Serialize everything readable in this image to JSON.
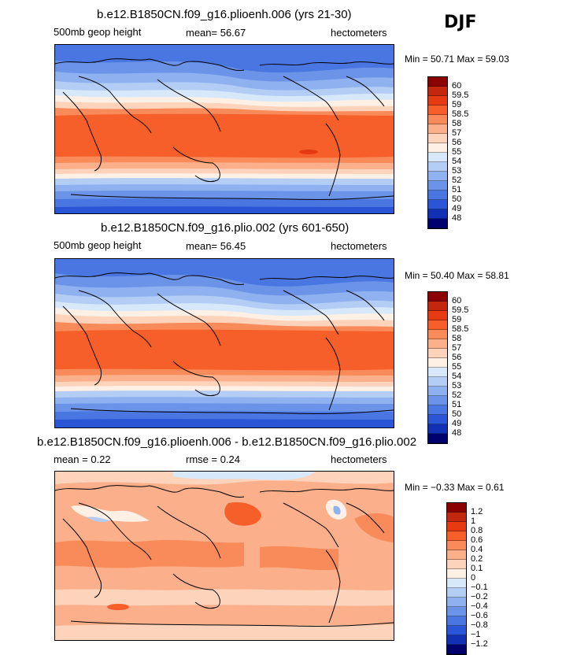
{
  "season": "DJF",
  "panels": [
    {
      "title": "b.e12.B1850CN.f09_g16.plioenh.006 (yrs 21-30)",
      "left_label": "500mb geop height",
      "center_label": "mean=   56.67",
      "right_label": "hectometers",
      "stats": "Min =   50.71  Max =   59.03",
      "levels": [
        "60",
        "59.5",
        "59",
        "58.5",
        "58",
        "57",
        "56",
        "55",
        "54",
        "53",
        "52",
        "51",
        "50",
        "49",
        "48"
      ],
      "colors": [
        "#8b0000",
        "#c3280e",
        "#e53a12",
        "#f65e2a",
        "#f98a5a",
        "#fbaf8a",
        "#fdd3bb",
        "#fff0e6",
        "#d7e8fb",
        "#b3cdf5",
        "#8fb1ef",
        "#6b94e9",
        "#4a76e2",
        "#2a55d6",
        "#1230b4",
        "#00006e"
      ]
    },
    {
      "title": "b.e12.B1850CN.f09_g16.plio.002 (yrs 601-650)",
      "left_label": "500mb  geop height",
      "center_label": "mean=   56.45",
      "right_label": "hectometers",
      "stats": "Min =   50.40  Max =   58.81",
      "levels": [
        "60",
        "59.5",
        "59",
        "58.5",
        "58",
        "57",
        "56",
        "55",
        "54",
        "53",
        "52",
        "51",
        "50",
        "49",
        "48"
      ],
      "colors": [
        "#8b0000",
        "#c3280e",
        "#e53a12",
        "#f65e2a",
        "#f98a5a",
        "#fbaf8a",
        "#fdd3bb",
        "#fff0e6",
        "#d7e8fb",
        "#b3cdf5",
        "#8fb1ef",
        "#6b94e9",
        "#4a76e2",
        "#2a55d6",
        "#1230b4",
        "#00006e"
      ]
    },
    {
      "title": "b.e12.B1850CN.f09_g16.plioenh.006 - b.e12.B1850CN.f09_g16.plio.002",
      "left_label": "mean =    0.22",
      "center_label": "rmse =    0.24",
      "right_label": "hectometers",
      "stats": "Min =  −0.33  Max =     0.61",
      "levels": [
        "1.2",
        "1",
        "0.8",
        "0.6",
        "0.4",
        "0.2",
        "0.1",
        "0",
        "−0.1",
        "−0.2",
        "−0.4",
        "−0.6",
        "−0.8",
        "−1",
        "−1.2"
      ],
      "colors": [
        "#8b0000",
        "#c3280e",
        "#e53a12",
        "#f65e2a",
        "#f98a5a",
        "#fbaf8a",
        "#fdd3bb",
        "#fff0e6",
        "#d7e8fb",
        "#b3cdf5",
        "#8fb1ef",
        "#6b94e9",
        "#4a76e2",
        "#2a55d6",
        "#1230b4",
        "#00006e"
      ]
    }
  ]
}
